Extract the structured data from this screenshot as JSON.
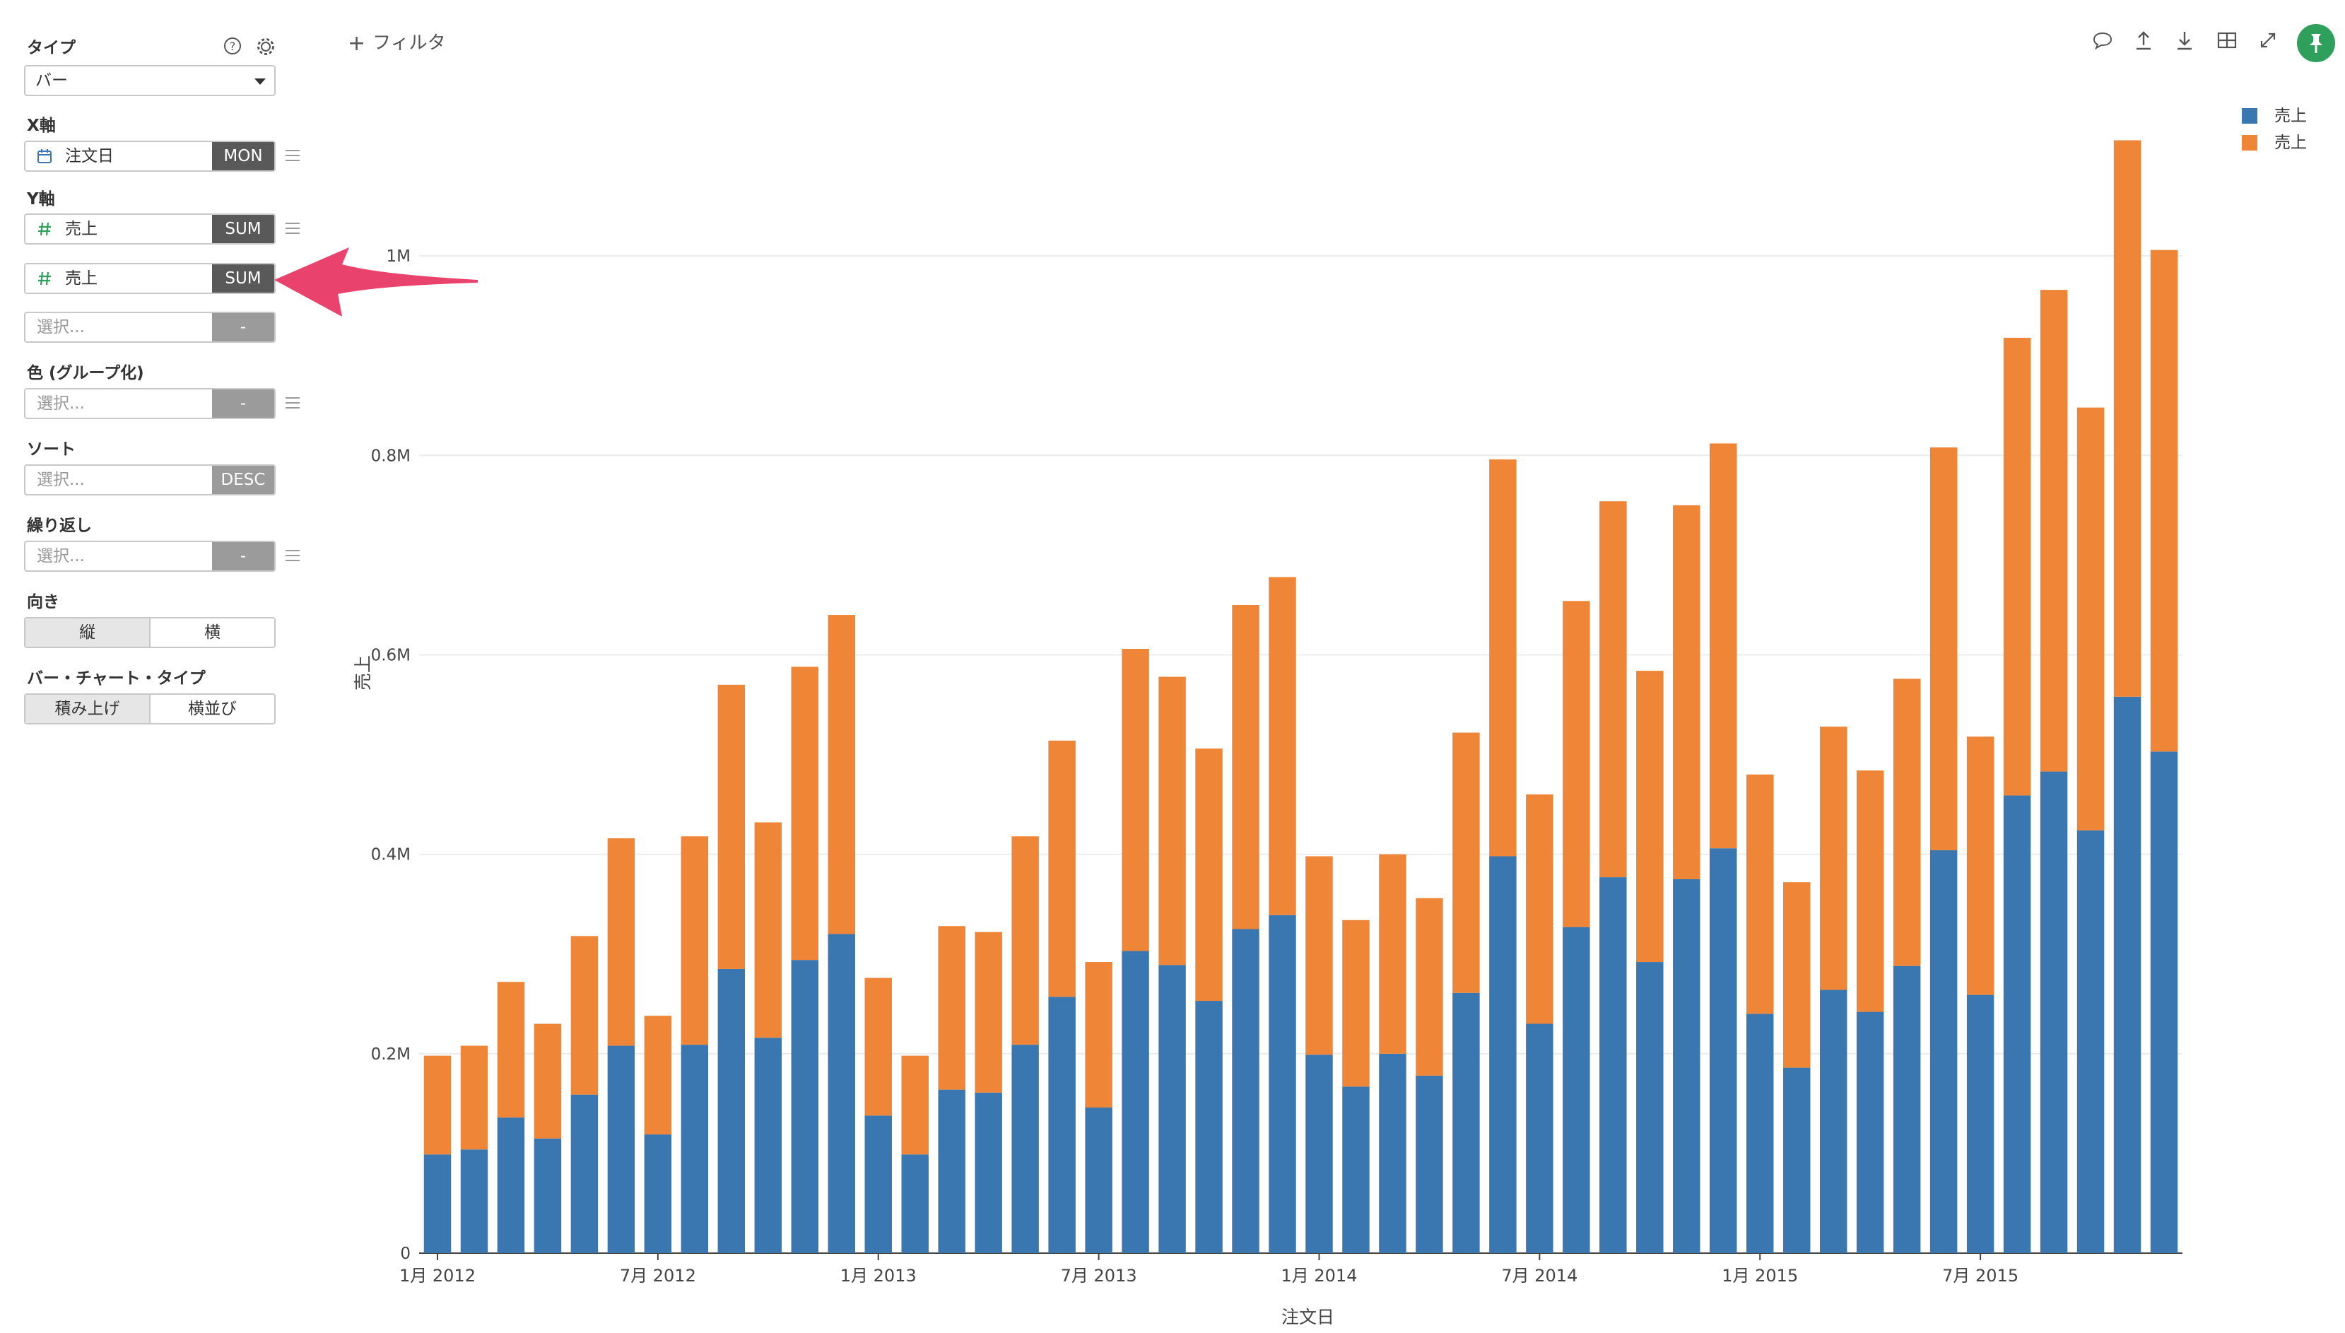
{
  "sidebar": {
    "type_label": "タイプ",
    "type_value": "バー",
    "x_label": "X軸",
    "x_field": {
      "name": "注文日",
      "agg": "MON",
      "icon": "calendar-icon"
    },
    "y_label": "Y軸",
    "y_fields": [
      {
        "name": "売上",
        "agg": "SUM",
        "icon": "number-icon"
      },
      {
        "name": "売上",
        "agg": "SUM",
        "icon": "number-icon"
      }
    ],
    "y_placeholder": "選択...",
    "y_placeholder_agg": "-",
    "color_label": "色 (グループ化)",
    "color_placeholder": "選択...",
    "color_agg": "-",
    "sort_label": "ソート",
    "sort_placeholder": "選択...",
    "sort_agg": "DESC",
    "repeat_label": "繰り返し",
    "repeat_placeholder": "選択...",
    "repeat_agg": "-",
    "orientation_label": "向き",
    "orientation_options": [
      "縦",
      "横"
    ],
    "orientation_selected": "縦",
    "bar_type_label": "バー・チャート・タイプ",
    "bar_type_options": [
      "積み上げ",
      "横並び"
    ],
    "bar_type_selected": "積み上げ"
  },
  "toolbar": {
    "filter_label": "フィルタ",
    "icons": [
      "comment-icon",
      "upload-icon",
      "download-icon",
      "grid-icon",
      "expand-icon",
      "pin-icon"
    ]
  },
  "colors": {
    "series1": "#3a77b1",
    "series2": "#ef8536",
    "pin": "#2ea05c",
    "agg_dark": "#595959",
    "agg_light": "#9b9b9b",
    "arrow": "#e8426d"
  },
  "chart_data": {
    "type": "bar",
    "stacked": true,
    "xlabel": "注文日",
    "ylabel": "売上",
    "ylim": [
      0,
      1200000
    ],
    "yticks": [
      0,
      200000,
      400000,
      600000,
      800000,
      1000000
    ],
    "ytick_labels": [
      "0",
      "0.2M",
      "0.4M",
      "0.6M",
      "0.8M",
      "1M"
    ],
    "xtick_labels": [
      "1月 2012",
      "7月 2012",
      "1月 2013",
      "7月 2013",
      "1月 2014",
      "7月 2014",
      "1月 2015",
      "7月 2015"
    ],
    "grid": true,
    "legend_position": "top-right",
    "categories": [
      "2012-01",
      "2012-02",
      "2012-03",
      "2012-04",
      "2012-05",
      "2012-06",
      "2012-07",
      "2012-08",
      "2012-09",
      "2012-10",
      "2012-11",
      "2012-12",
      "2013-01",
      "2013-02",
      "2013-03",
      "2013-04",
      "2013-05",
      "2013-06",
      "2013-07",
      "2013-08",
      "2013-09",
      "2013-10",
      "2013-11",
      "2013-12",
      "2014-01",
      "2014-02",
      "2014-03",
      "2014-04",
      "2014-05",
      "2014-06",
      "2014-07",
      "2014-08",
      "2014-09",
      "2014-10",
      "2014-11",
      "2014-12",
      "2015-01",
      "2015-02",
      "2015-03",
      "2015-04",
      "2015-05",
      "2015-06",
      "2015-07",
      "2015-08",
      "2015-09",
      "2015-10",
      "2015-11",
      "2015-12"
    ],
    "series": [
      {
        "name": "売上",
        "values": [
          99000,
          104000,
          136000,
          115000,
          159000,
          208000,
          119000,
          209000,
          285000,
          216000,
          294000,
          320000,
          138000,
          99000,
          164000,
          161000,
          209000,
          257000,
          146000,
          303000,
          289000,
          253000,
          325000,
          339000,
          199000,
          167000,
          200000,
          178000,
          261000,
          398000,
          230000,
          327000,
          377000,
          292000,
          375000,
          406000,
          240000,
          186000,
          264000,
          242000,
          288000,
          404000,
          259000,
          459000,
          483000,
          424000,
          558000,
          503000
        ]
      },
      {
        "name": "売上",
        "values": [
          99000,
          104000,
          136000,
          115000,
          159000,
          208000,
          119000,
          209000,
          285000,
          216000,
          294000,
          320000,
          138000,
          99000,
          164000,
          161000,
          209000,
          257000,
          146000,
          303000,
          289000,
          253000,
          325000,
          339000,
          199000,
          167000,
          200000,
          178000,
          261000,
          398000,
          230000,
          327000,
          377000,
          292000,
          375000,
          406000,
          240000,
          186000,
          264000,
          242000,
          288000,
          404000,
          259000,
          459000,
          483000,
          424000,
          558000,
          503000
        ]
      }
    ]
  }
}
